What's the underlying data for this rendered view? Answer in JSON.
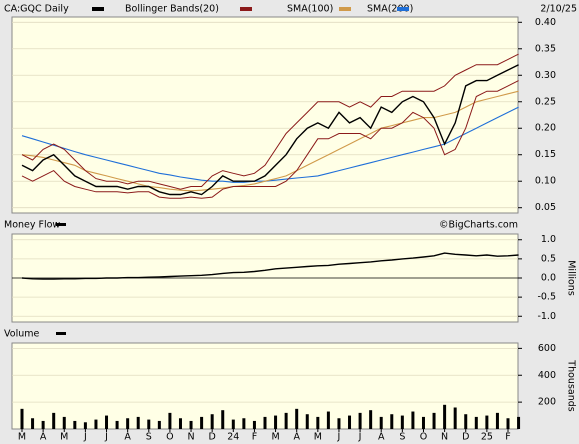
{
  "chart_data": [
    {
      "type": "line",
      "date": "2/10/25",
      "ylim": [
        0.04,
        0.41
      ],
      "yticks": [
        {
          "value": 0.4,
          "label": "0.40"
        },
        0.35,
        {
          "value": 0.3,
          "label": "0.30"
        },
        0.25,
        {
          "value": 0.2,
          "label": "0.20"
        },
        0.15,
        {
          "value": 0.1,
          "label": "0.10"
        },
        0.05
      ],
      "grid": true,
      "series": [
        {
          "name": "CA:GQC Daily",
          "color": "#000000",
          "values": [
            0.13,
            0.12,
            0.14,
            0.15,
            0.13,
            0.11,
            0.1,
            0.09,
            0.09,
            0.09,
            0.085,
            0.09,
            0.09,
            0.08,
            0.075,
            0.075,
            0.08,
            0.075,
            0.09,
            0.11,
            0.1,
            0.1,
            0.1,
            0.11,
            0.13,
            0.15,
            0.18,
            0.2,
            0.21,
            0.2,
            0.23,
            0.21,
            0.22,
            0.2,
            0.24,
            0.23,
            0.25,
            0.26,
            0.25,
            0.22,
            0.17,
            0.21,
            0.28,
            0.29,
            0.29,
            0.3,
            0.31,
            0.32
          ]
        },
        {
          "name": "Bollinger Bands(20)",
          "color": "#8b1a1a",
          "upper": [
            0.15,
            0.14,
            0.16,
            0.17,
            0.16,
            0.14,
            0.12,
            0.105,
            0.1,
            0.1,
            0.095,
            0.1,
            0.1,
            0.095,
            0.09,
            0.085,
            0.09,
            0.09,
            0.11,
            0.12,
            0.115,
            0.11,
            0.115,
            0.13,
            0.16,
            0.19,
            0.21,
            0.23,
            0.25,
            0.25,
            0.25,
            0.24,
            0.25,
            0.24,
            0.26,
            0.26,
            0.27,
            0.27,
            0.27,
            0.27,
            0.28,
            0.3,
            0.31,
            0.32,
            0.32,
            0.32,
            0.33,
            0.34
          ],
          "lower": [
            0.11,
            0.1,
            0.11,
            0.12,
            0.1,
            0.09,
            0.085,
            0.08,
            0.08,
            0.08,
            0.078,
            0.08,
            0.08,
            0.07,
            0.068,
            0.068,
            0.07,
            0.068,
            0.07,
            0.085,
            0.09,
            0.09,
            0.09,
            0.09,
            0.09,
            0.1,
            0.12,
            0.15,
            0.18,
            0.18,
            0.19,
            0.19,
            0.19,
            0.18,
            0.2,
            0.2,
            0.21,
            0.23,
            0.22,
            0.2,
            0.15,
            0.16,
            0.2,
            0.26,
            0.27,
            0.27,
            0.28,
            0.29
          ]
        },
        {
          "name": "SMA(100)",
          "color": "#d09a4a",
          "values": [
            0.15,
            0.148,
            0.145,
            0.14,
            0.135,
            0.13,
            0.12,
            0.115,
            0.11,
            0.105,
            0.1,
            0.095,
            0.09,
            0.088,
            0.085,
            0.083,
            0.082,
            0.083,
            0.085,
            0.087,
            0.09,
            0.092,
            0.095,
            0.1,
            0.105,
            0.11,
            0.12,
            0.13,
            0.14,
            0.15,
            0.16,
            0.17,
            0.18,
            0.19,
            0.2,
            0.205,
            0.21,
            0.215,
            0.22,
            0.22,
            0.225,
            0.23,
            0.24,
            0.25,
            0.255,
            0.26,
            0.265,
            0.27
          ]
        },
        {
          "name": "SMA(200)",
          "color": "#1f6fd8",
          "values": [
            0.186,
            0.18,
            0.174,
            0.168,
            0.162,
            0.156,
            0.15,
            0.145,
            0.14,
            0.135,
            0.13,
            0.125,
            0.12,
            0.115,
            0.112,
            0.108,
            0.105,
            0.102,
            0.1,
            0.1,
            0.098,
            0.098,
            0.1,
            0.1,
            0.102,
            0.104,
            0.106,
            0.108,
            0.11,
            0.115,
            0.12,
            0.125,
            0.13,
            0.135,
            0.14,
            0.145,
            0.15,
            0.155,
            0.16,
            0.165,
            0.17,
            0.18,
            0.19,
            0.2,
            0.21,
            0.22,
            0.23,
            0.24
          ]
        }
      ]
    },
    {
      "type": "line",
      "title": "Money Flow",
      "annotation": "©BigCharts.com",
      "y_label": "Millions",
      "ylim": [
        -1.15,
        1.15
      ],
      "yticks": [
        {
          "value": 1.0,
          "label": "1.0"
        },
        0.5,
        {
          "value": 0.0,
          "label": "0.0"
        },
        -0.5,
        {
          "value": -1.0,
          "label": "-1.0"
        }
      ],
      "grid": true,
      "series": [
        {
          "name": "Money Flow",
          "color": "#000000",
          "values": [
            0,
            -0.02,
            -0.03,
            -0.03,
            -0.02,
            -0.02,
            -0.01,
            -0.01,
            0,
            0,
            0.01,
            0.01,
            0.02,
            0.03,
            0.04,
            0.05,
            0.06,
            0.07,
            0.09,
            0.12,
            0.14,
            0.15,
            0.17,
            0.2,
            0.24,
            0.26,
            0.28,
            0.3,
            0.32,
            0.33,
            0.36,
            0.38,
            0.4,
            0.42,
            0.45,
            0.47,
            0.5,
            0.52,
            0.55,
            0.58,
            0.65,
            0.62,
            0.6,
            0.58,
            0.6,
            0.57,
            0.58,
            0.6
          ]
        }
      ]
    },
    {
      "type": "bar",
      "title": "Volume",
      "y_label": "Thousands",
      "ylim": [
        0,
        640
      ],
      "yticks": [
        600,
        400,
        200
      ],
      "grid": true,
      "categories": [
        "M",
        null,
        "A",
        null,
        "M",
        null,
        "J",
        null,
        "J",
        null,
        "A",
        null,
        "S",
        null,
        "O",
        null,
        "N",
        null,
        "D",
        null,
        "24",
        null,
        "F",
        null,
        "M",
        null,
        "A",
        null,
        "M",
        null,
        "J",
        null,
        "J",
        null,
        "A",
        null,
        "S",
        null,
        "O",
        null,
        "N",
        null,
        "D",
        null,
        "25",
        null,
        "F",
        null
      ],
      "series": [
        {
          "name": "Volume",
          "color": "#000000",
          "values": [
            150,
            80,
            60,
            120,
            90,
            60,
            50,
            70,
            100,
            60,
            80,
            90,
            70,
            60,
            120,
            80,
            60,
            90,
            110,
            140,
            70,
            80,
            60,
            90,
            100,
            120,
            150,
            110,
            90,
            130,
            80,
            100,
            120,
            140,
            90,
            110,
            100,
            130,
            90,
            120,
            180,
            160,
            110,
            90,
            100,
            120,
            80,
            90
          ]
        }
      ]
    }
  ]
}
